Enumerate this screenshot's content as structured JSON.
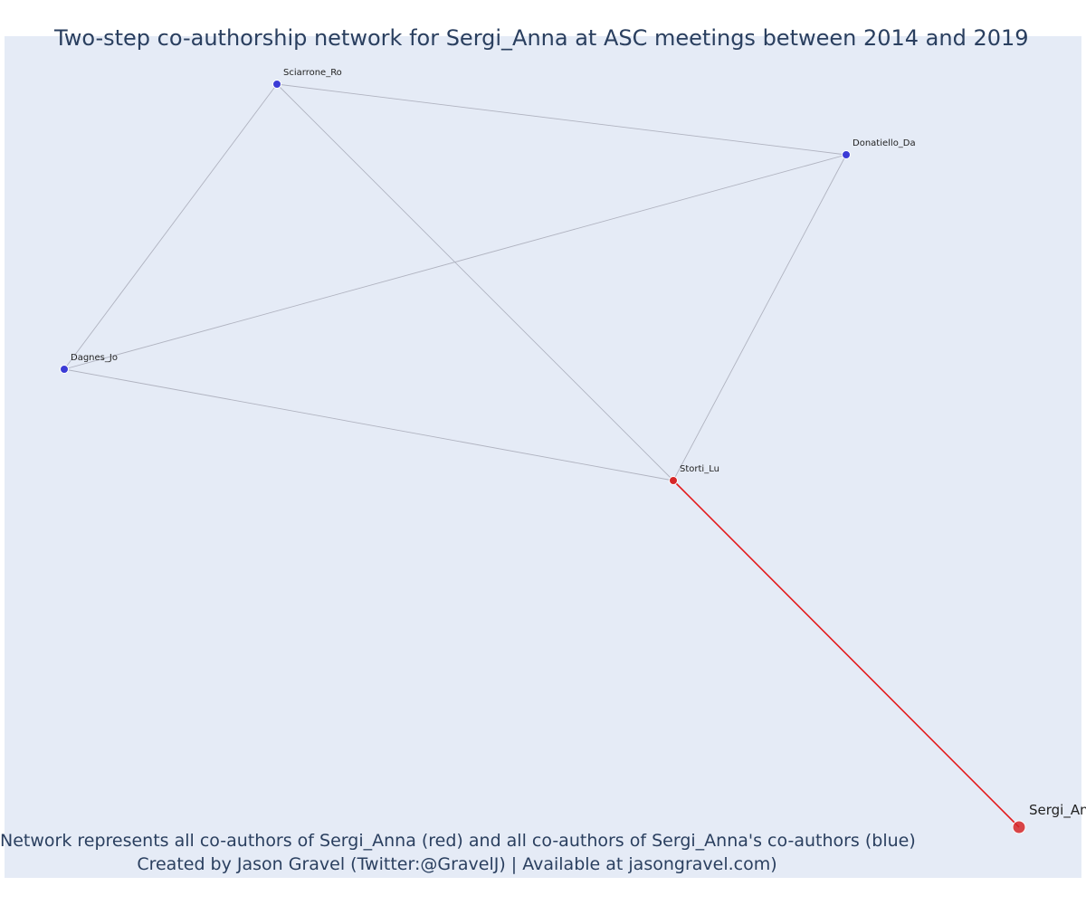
{
  "title": "Two-step co-authorship network for Sergi_Anna at ASC meetings between 2014 and 2019",
  "caption": {
    "line1": "Network represents all co-authors of Sergi_Anna (red) and all co-authors of Sergi_Anna's co-authors (blue)",
    "line2": "Created by Jason Gravel (Twitter:@GravelJ) | Available at jasongravel.com)"
  },
  "colors": {
    "background": "#e5ebf6",
    "coauthor_node": "#d62728",
    "second_step_node": "#3b3bd6",
    "focal_edge": "#e31a1c",
    "other_edge": "#b0b3c0",
    "text": "#2a3f5f"
  },
  "nodes": [
    {
      "id": "Sergi_Anna",
      "label": "Sergi_Anna",
      "group": "focal"
    },
    {
      "id": "Storti_Lu",
      "label": "Storti_Lu",
      "group": "coauthor"
    },
    {
      "id": "Sciarrone_Ro",
      "label": "Sciarrone_Ro",
      "group": "second_step"
    },
    {
      "id": "Donatiello_Da",
      "label": "Donatiello_Da",
      "group": "second_step"
    },
    {
      "id": "Dagnes_Jo",
      "label": "Dagnes_Jo",
      "group": "second_step"
    }
  ],
  "edges": [
    {
      "source": "Sergi_Anna",
      "target": "Storti_Lu",
      "type": "focal"
    },
    {
      "source": "Storti_Lu",
      "target": "Sciarrone_Ro",
      "type": "other"
    },
    {
      "source": "Storti_Lu",
      "target": "Donatiello_Da",
      "type": "other"
    },
    {
      "source": "Storti_Lu",
      "target": "Dagnes_Jo",
      "type": "other"
    },
    {
      "source": "Sciarrone_Ro",
      "target": "Donatiello_Da",
      "type": "other"
    },
    {
      "source": "Sciarrone_Ro",
      "target": "Dagnes_Jo",
      "type": "other"
    },
    {
      "source": "Donatiello_Da",
      "target": "Dagnes_Jo",
      "type": "other"
    }
  ]
}
